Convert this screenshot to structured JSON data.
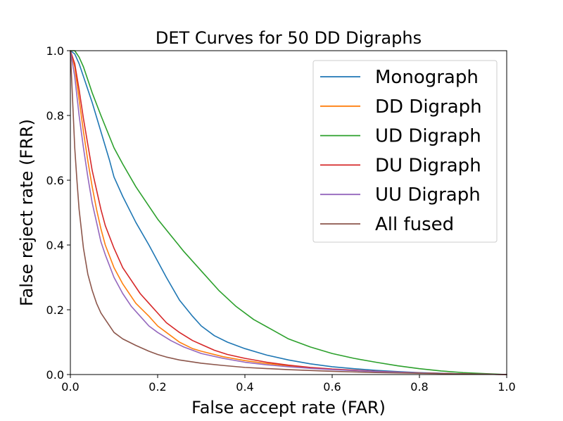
{
  "chart_data": {
    "type": "line",
    "title": "DET Curves for 50 DD Digraphs",
    "xlabel": "False accept rate (FAR)",
    "ylabel": "False reject rate (FRR)",
    "xlim": [
      0.0,
      1.0
    ],
    "ylim": [
      0.0,
      1.0
    ],
    "xticks": [
      "0.0",
      "0.2",
      "0.4",
      "0.6",
      "0.8",
      "1.0"
    ],
    "yticks": [
      "0.0",
      "0.2",
      "0.4",
      "0.6",
      "0.8",
      "1.0"
    ],
    "legend_position": "top-right",
    "grid": false,
    "series": [
      {
        "name": "Monograph",
        "color": "#1f77b4",
        "x": [
          0.0,
          0.01,
          0.02,
          0.03,
          0.05,
          0.07,
          0.09,
          0.1,
          0.12,
          0.15,
          0.18,
          0.2,
          0.22,
          0.25,
          0.28,
          0.3,
          0.33,
          0.36,
          0.4,
          0.45,
          0.5,
          0.55,
          0.6,
          0.65,
          0.7,
          0.75,
          0.8,
          0.85,
          0.9,
          0.95,
          1.0
        ],
        "y": [
          1.0,
          0.99,
          0.96,
          0.92,
          0.84,
          0.75,
          0.66,
          0.61,
          0.55,
          0.47,
          0.4,
          0.35,
          0.3,
          0.23,
          0.18,
          0.15,
          0.12,
          0.1,
          0.08,
          0.06,
          0.045,
          0.033,
          0.024,
          0.018,
          0.013,
          0.009,
          0.006,
          0.004,
          0.002,
          0.001,
          0.0
        ]
      },
      {
        "name": "DD Digraph",
        "color": "#ff7f0e",
        "x": [
          0.0,
          0.01,
          0.02,
          0.03,
          0.04,
          0.05,
          0.06,
          0.07,
          0.08,
          0.1,
          0.12,
          0.15,
          0.18,
          0.2,
          0.22,
          0.25,
          0.28,
          0.3,
          0.35,
          0.4,
          0.45,
          0.5,
          0.55,
          0.6,
          0.7,
          0.8,
          0.9,
          1.0
        ],
        "y": [
          1.0,
          0.95,
          0.85,
          0.75,
          0.66,
          0.58,
          0.51,
          0.45,
          0.4,
          0.33,
          0.28,
          0.22,
          0.18,
          0.15,
          0.13,
          0.1,
          0.08,
          0.072,
          0.055,
          0.043,
          0.034,
          0.027,
          0.021,
          0.016,
          0.009,
          0.005,
          0.002,
          0.0
        ]
      },
      {
        "name": "UD Digraph",
        "color": "#2ca02c",
        "x": [
          0.0,
          0.01,
          0.02,
          0.03,
          0.05,
          0.07,
          0.1,
          0.12,
          0.15,
          0.18,
          0.2,
          0.23,
          0.26,
          0.3,
          0.34,
          0.38,
          0.42,
          0.46,
          0.5,
          0.55,
          0.6,
          0.65,
          0.7,
          0.75,
          0.8,
          0.85,
          0.9,
          0.95,
          1.0
        ],
        "y": [
          1.0,
          1.0,
          0.98,
          0.95,
          0.87,
          0.8,
          0.7,
          0.65,
          0.58,
          0.52,
          0.48,
          0.43,
          0.38,
          0.32,
          0.26,
          0.21,
          0.17,
          0.14,
          0.11,
          0.085,
          0.065,
          0.05,
          0.038,
          0.027,
          0.018,
          0.011,
          0.006,
          0.003,
          0.0
        ]
      },
      {
        "name": "DU Digraph",
        "color": "#d62728",
        "x": [
          0.0,
          0.01,
          0.02,
          0.03,
          0.04,
          0.05,
          0.06,
          0.07,
          0.08,
          0.1,
          0.12,
          0.14,
          0.16,
          0.18,
          0.2,
          0.22,
          0.25,
          0.28,
          0.3,
          0.33,
          0.36,
          0.4,
          0.45,
          0.5,
          0.55,
          0.6,
          0.7,
          0.8,
          0.9,
          1.0
        ],
        "y": [
          1.0,
          0.96,
          0.88,
          0.79,
          0.71,
          0.63,
          0.57,
          0.51,
          0.46,
          0.39,
          0.33,
          0.29,
          0.25,
          0.22,
          0.19,
          0.16,
          0.13,
          0.105,
          0.093,
          0.075,
          0.062,
          0.05,
          0.038,
          0.029,
          0.022,
          0.017,
          0.01,
          0.005,
          0.002,
          0.0
        ]
      },
      {
        "name": "UU Digraph",
        "color": "#9467bd",
        "x": [
          0.0,
          0.01,
          0.02,
          0.03,
          0.04,
          0.05,
          0.06,
          0.07,
          0.08,
          0.1,
          0.12,
          0.14,
          0.16,
          0.18,
          0.2,
          0.23,
          0.26,
          0.3,
          0.35,
          0.4,
          0.45,
          0.5,
          0.55,
          0.6,
          0.7,
          0.8,
          0.9,
          1.0
        ],
        "y": [
          1.0,
          0.92,
          0.8,
          0.7,
          0.61,
          0.53,
          0.47,
          0.41,
          0.37,
          0.3,
          0.25,
          0.21,
          0.18,
          0.15,
          0.13,
          0.105,
          0.085,
          0.065,
          0.05,
          0.038,
          0.03,
          0.024,
          0.019,
          0.015,
          0.009,
          0.005,
          0.002,
          0.0
        ]
      },
      {
        "name": "All fused",
        "color": "#8c564b",
        "x": [
          0.0,
          0.005,
          0.01,
          0.015,
          0.02,
          0.03,
          0.04,
          0.05,
          0.06,
          0.07,
          0.08,
          0.1,
          0.12,
          0.15,
          0.18,
          0.2,
          0.22,
          0.25,
          0.3,
          0.35,
          0.4,
          0.5,
          0.6,
          0.7,
          0.8,
          0.9,
          1.0
        ],
        "y": [
          1.0,
          0.85,
          0.7,
          0.6,
          0.51,
          0.39,
          0.31,
          0.26,
          0.22,
          0.19,
          0.17,
          0.13,
          0.11,
          0.09,
          0.072,
          0.062,
          0.054,
          0.045,
          0.035,
          0.028,
          0.022,
          0.015,
          0.01,
          0.006,
          0.004,
          0.002,
          0.0
        ]
      }
    ]
  }
}
